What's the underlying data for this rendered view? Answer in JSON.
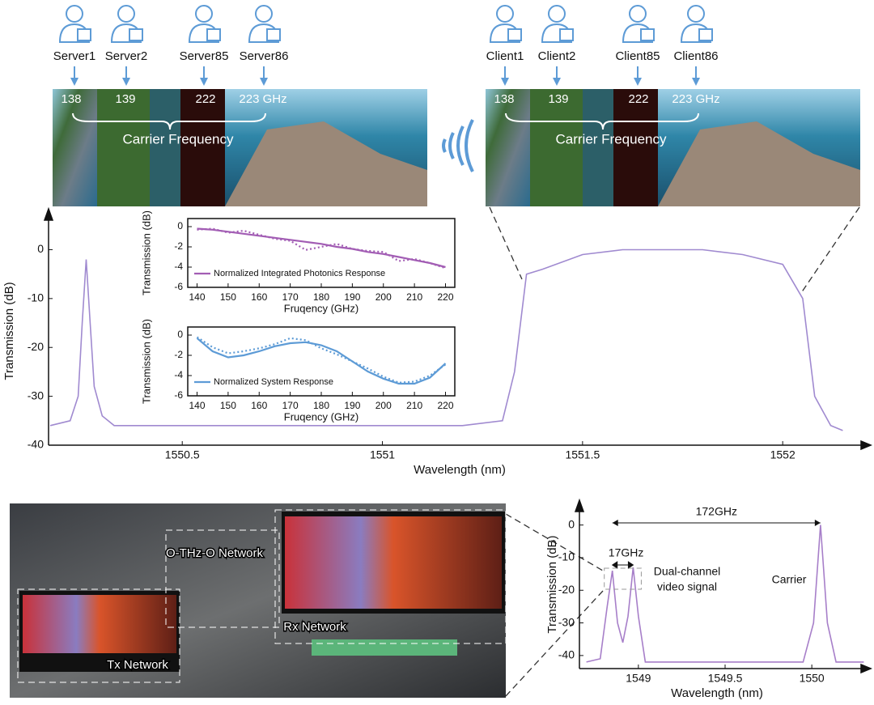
{
  "diagram": {
    "servers": [
      "Server1",
      "Server2",
      "Server85",
      "Server86"
    ],
    "clients": [
      "Client1",
      "Client2",
      "Client85",
      "Client86"
    ],
    "tx_strip": {
      "labels": [
        "138",
        "139",
        "222",
        "223 GHz"
      ],
      "caption": "Carrier Frequency"
    },
    "rx_strip": {
      "labels": [
        "138",
        "139",
        "222",
        "223 GHz"
      ],
      "caption": "Carrier Frequency"
    },
    "photo_labels": [
      "O-THz-O Network",
      "Rx Network",
      "Tx Network"
    ]
  },
  "chart_data": [
    {
      "type": "line",
      "x_label": "Wavelength (nm)",
      "y_label": "Transmission (dB)",
      "x": [
        1550.17,
        1550.22,
        1550.24,
        1550.25,
        1550.26,
        1550.27,
        1550.28,
        1550.3,
        1550.33,
        1550.5,
        1550.8,
        1551.0,
        1551.2,
        1551.3,
        1551.33,
        1551.36,
        1551.4,
        1551.5,
        1551.6,
        1551.7,
        1551.8,
        1551.9,
        1552.0,
        1552.05,
        1552.08,
        1552.12,
        1552.15
      ],
      "series": [
        {
          "color": "#a08ad0",
          "values": [
            -36,
            -35,
            -30,
            -15,
            -2,
            -15,
            -28,
            -34,
            -36,
            -36,
            -36,
            -36,
            -36,
            -35,
            -25,
            -5,
            -4,
            -1,
            0,
            0,
            0,
            -1,
            -3,
            -10,
            -30,
            -36,
            -37
          ]
        }
      ],
      "xlim": [
        1550.166,
        1552.22
      ],
      "xticks": [
        1550.5,
        1551,
        1551.5,
        1552
      ],
      "ylim": [
        -40,
        6.7
      ],
      "yticks": [
        0,
        -10,
        -20,
        -30,
        -40
      ]
    },
    {
      "type": "line",
      "x_label": "Fruqency (GHz)",
      "y_label": "Transmission (dB)",
      "legend": "bottom-left",
      "x": [
        140,
        145,
        150,
        155,
        160,
        165,
        170,
        175,
        180,
        185,
        190,
        195,
        200,
        205,
        210,
        215,
        220
      ],
      "series": [
        {
          "color": "#a25db4",
          "line_style": "dotted",
          "values": [
            -0.3,
            -0.2,
            -0.6,
            -0.4,
            -0.8,
            -1.2,
            -1.4,
            -2.3,
            -2.0,
            -1.7,
            -2.2,
            -2.4,
            -2.5,
            -3.4,
            -3.2,
            -3.6,
            -4.1
          ]
        },
        {
          "name": "Normalized Integrated Photonics Response",
          "color": "#a25db4",
          "line_style": "solid",
          "values": [
            -0.2,
            -0.3,
            -0.5,
            -0.7,
            -0.9,
            -1.1,
            -1.3,
            -1.5,
            -1.7,
            -2.0,
            -2.2,
            -2.5,
            -2.7,
            -3.0,
            -3.3,
            -3.6,
            -4.0
          ]
        }
      ],
      "xlim": [
        137,
        223
      ],
      "xticks": [
        140,
        150,
        160,
        170,
        180,
        190,
        200,
        210,
        220
      ],
      "ylim": [
        -6,
        0.8
      ],
      "yticks": [
        0,
        -2,
        -4,
        -6
      ]
    },
    {
      "type": "line",
      "x_label": "Fruqency (GHz)",
      "y_label": "Transmission (dB)",
      "legend": "bottom-left",
      "x": [
        140,
        145,
        150,
        155,
        160,
        165,
        170,
        175,
        180,
        185,
        190,
        195,
        200,
        205,
        210,
        215,
        220
      ],
      "series": [
        {
          "color": "#5d9bd6",
          "line_style": "dotted",
          "values": [
            -0.2,
            -1.2,
            -1.8,
            -1.6,
            -1.3,
            -0.9,
            -0.3,
            -0.5,
            -1.3,
            -1.9,
            -2.6,
            -3.3,
            -4.1,
            -4.7,
            -4.6,
            -4.0,
            -2.9
          ]
        },
        {
          "name": "Normalized System Response",
          "color": "#5d9bd6",
          "line_style": "solid",
          "values": [
            -0.3,
            -1.6,
            -2.2,
            -2.0,
            -1.6,
            -1.1,
            -0.8,
            -0.7,
            -1.0,
            -1.6,
            -2.6,
            -3.6,
            -4.3,
            -4.8,
            -4.8,
            -4.2,
            -2.8
          ]
        }
      ],
      "xlim": [
        137,
        223
      ],
      "xticks": [
        140,
        150,
        160,
        170,
        180,
        190,
        200,
        210,
        220
      ],
      "ylim": [
        -6,
        0.8
      ],
      "yticks": [
        0,
        -2,
        -4,
        -6
      ]
    },
    {
      "type": "line",
      "x_label": "Wavelength (nm)",
      "y_label": "Transmission (dB)",
      "annotations": [
        "172GHz",
        "17GHz",
        "Dual-channel",
        "video signal",
        "Carrier"
      ],
      "x": [
        1548.7,
        1548.78,
        1548.82,
        1548.85,
        1548.88,
        1548.91,
        1548.94,
        1548.97,
        1549.0,
        1549.04,
        1549.5,
        1549.95,
        1550.01,
        1550.05,
        1550.09,
        1550.14,
        1550.3
      ],
      "series": [
        {
          "color": "#a77fc9",
          "values": [
            -42,
            -41,
            -25,
            -14,
            -30,
            -36,
            -28,
            -13,
            -28,
            -42,
            -42,
            -42,
            -30,
            0,
            -30,
            -42,
            -42
          ]
        }
      ],
      "xlim": [
        1548.66,
        1550.34
      ],
      "xticks": [
        1549,
        1549.5,
        1550
      ],
      "ylim": [
        -44,
        7.6
      ],
      "yticks": [
        0,
        -10,
        -20,
        -30,
        -40
      ]
    }
  ]
}
